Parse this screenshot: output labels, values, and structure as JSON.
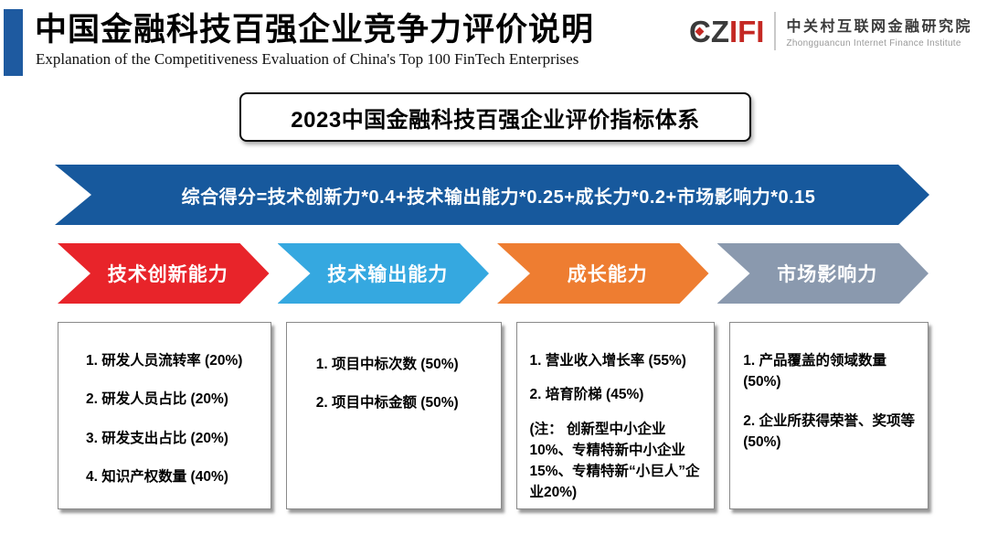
{
  "header": {
    "accent_color": "#1E5AA0",
    "title": "中国金融科技百强企业竞争力评价说明",
    "subtitle": "Explanation of the Competitiveness Evaluation of China's Top 100 FinTech Enterprises",
    "logo": {
      "cz": "CZ",
      "ifi": "IFI",
      "cz_color": "#3a3a3a",
      "ifi_color": "#c42823",
      "diamond_color": "#c42823",
      "org_cn": "中关村互联网金融研究院",
      "org_en": "Zhongguancun Internet Finance Institute"
    }
  },
  "section_title": {
    "text": "2023中国金融科技百强企业评价指标体系"
  },
  "formula": {
    "text": "综合得分=技术创新力*0.4+技术输出能力*0.25+成长力*0.2+市场影响力*0.15",
    "bg": "#17599D"
  },
  "categories": [
    {
      "label": "技术创新能力",
      "color": "#E8242A",
      "items": [
        "1. 研发人员流转率 (20%)",
        "2. 研发人员占比 (20%)",
        "3. 研发支出占比 (20%)",
        "4. 知识产权数量 (40%)"
      ]
    },
    {
      "label": "技术输出能力",
      "color": "#35A8E0",
      "items": [
        "1. 项目中标次数 (50%)",
        "2. 项目中标金额 (50%)"
      ]
    },
    {
      "label": "成长能力",
      "color": "#EE7D31",
      "items": [
        "1. 营业收入增长率 (55%)",
        "2. 培育阶梯 (45%)",
        "(注： 创新型中小企业10%、专精特新中小企业15%、专精特新“小巨人”企业20%)"
      ]
    },
    {
      "label": "市场影响力",
      "color": "#8A99AE",
      "items": [
        "1. 产品覆盖的领域数量 (50%)",
        "2. 企业所获得荣誉、奖项等 (50%)"
      ]
    }
  ]
}
